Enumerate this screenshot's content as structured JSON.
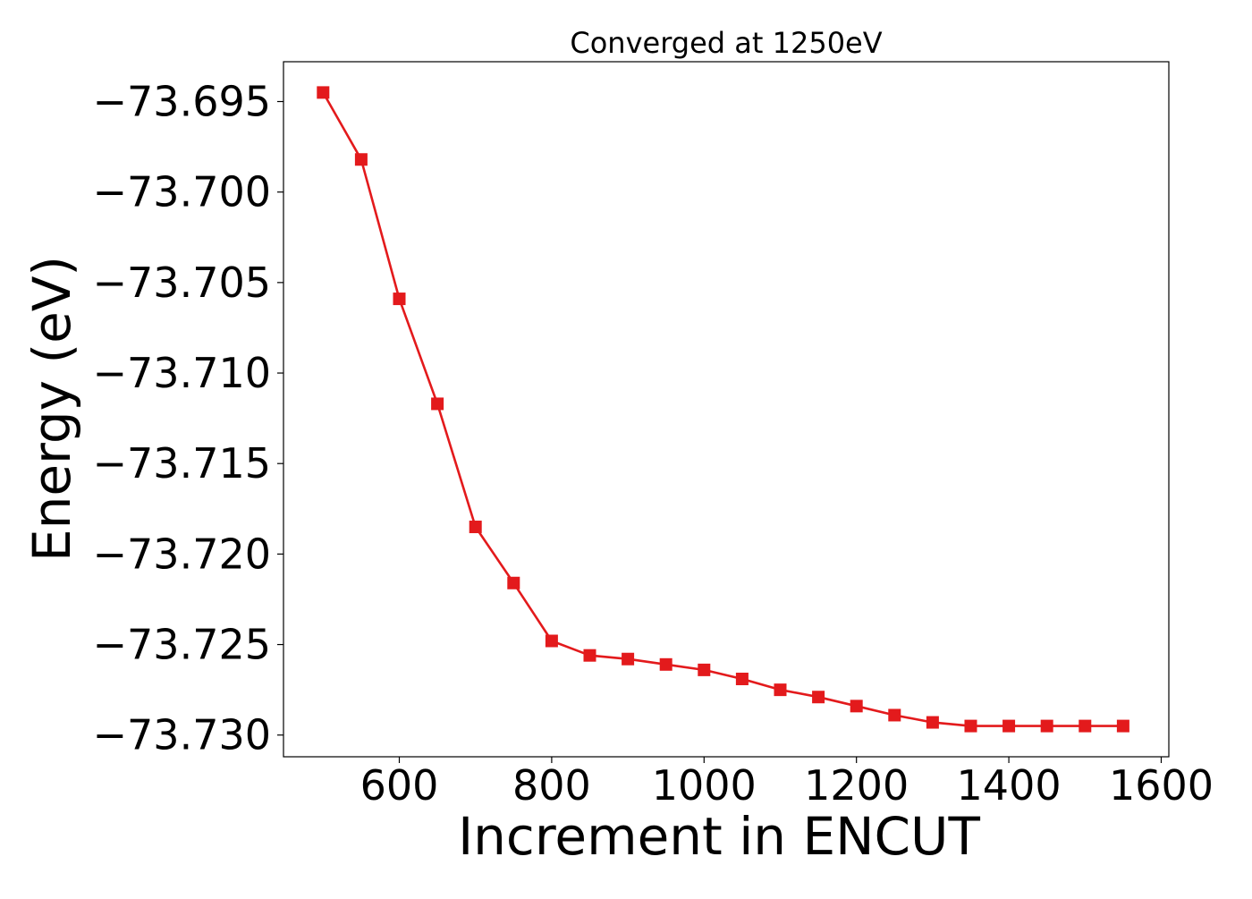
{
  "chart_data": {
    "type": "line",
    "title": "Converged at 1250eV",
    "xlabel": "Increment in ENCUT",
    "ylabel": "Energy (eV)",
    "xlim": [
      448,
      1610
    ],
    "ylim": [
      -73.7312,
      -73.6928
    ],
    "xticks": [
      600,
      800,
      1000,
      1200,
      1400,
      1600
    ],
    "xtick_labels": [
      "600",
      "800",
      "1000",
      "1200",
      "1400",
      "1600"
    ],
    "yticks": [
      -73.695,
      -73.7,
      -73.705,
      -73.71,
      -73.715,
      -73.72,
      -73.725,
      -73.73
    ],
    "ytick_labels": [
      "−73.695",
      "−73.700",
      "−73.705",
      "−73.710",
      "−73.715",
      "−73.720",
      "−73.725",
      "−73.730"
    ],
    "grid": false,
    "series": [
      {
        "color": "#e31a1c",
        "marker": "square",
        "x": [
          500,
          550,
          600,
          650,
          700,
          750,
          800,
          850,
          900,
          950,
          1000,
          1050,
          1100,
          1150,
          1200,
          1250,
          1300,
          1350,
          1400,
          1450,
          1500,
          1550
        ],
        "y": [
          -73.6945,
          -73.6982,
          -73.7059,
          -73.7117,
          -73.7185,
          -73.7216,
          -73.7248,
          -73.7256,
          -73.7258,
          -73.7261,
          -73.7264,
          -73.7269,
          -73.7275,
          -73.7279,
          -73.7284,
          -73.7289,
          -73.7293,
          -73.7295,
          -73.7295,
          -73.7295,
          -73.7295,
          -73.7295
        ]
      }
    ]
  }
}
